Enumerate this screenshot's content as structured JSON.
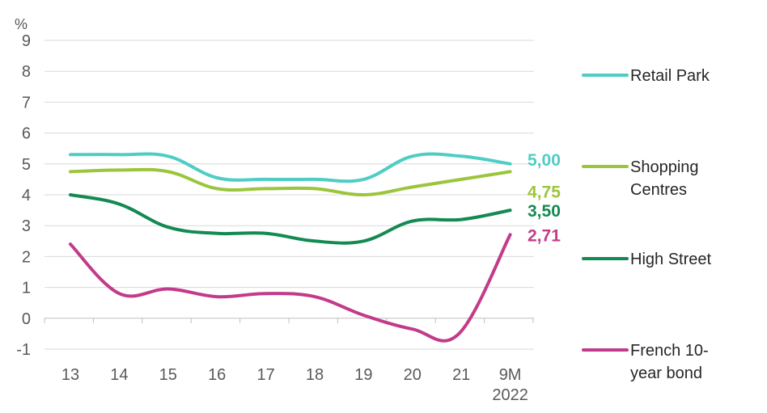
{
  "chart_data": {
    "type": "line",
    "title": "",
    "xlabel": "",
    "ylabel": "%",
    "ylim": [
      -1,
      9
    ],
    "yticks": [
      "-1",
      "0",
      "1",
      "2",
      "3",
      "4",
      "5",
      "6",
      "7",
      "8",
      "9"
    ],
    "categories": [
      "13",
      "14",
      "15",
      "16",
      "17",
      "18",
      "19",
      "20",
      "21",
      "9M\n2022"
    ],
    "grid": true,
    "legend_position": "right",
    "series": [
      {
        "name": "Retail Park",
        "color": "#4ecdc4",
        "end_label": "5,00",
        "points": [
          [
            0,
            5.3
          ],
          [
            1,
            5.3
          ],
          [
            2,
            5.25
          ],
          [
            3,
            4.55
          ],
          [
            4,
            4.5
          ],
          [
            5,
            4.5
          ],
          [
            6,
            4.5
          ],
          [
            7,
            5.25
          ],
          [
            8,
            5.25
          ],
          [
            9,
            5.0
          ]
        ]
      },
      {
        "name": "Shopping\nCentres",
        "color": "#9bc53d",
        "end_label": "4,75",
        "points": [
          [
            0,
            4.75
          ],
          [
            1,
            4.8
          ],
          [
            2,
            4.75
          ],
          [
            3,
            4.2
          ],
          [
            4,
            4.2
          ],
          [
            5,
            4.2
          ],
          [
            6,
            4.0
          ],
          [
            7,
            4.25
          ],
          [
            8,
            4.5
          ],
          [
            9,
            4.75
          ]
        ]
      },
      {
        "name": "High Street",
        "color": "#138a52",
        "end_label": "3,50",
        "points": [
          [
            0,
            4.0
          ],
          [
            1,
            3.7
          ],
          [
            2,
            2.95
          ],
          [
            3,
            2.75
          ],
          [
            4,
            2.75
          ],
          [
            5,
            2.5
          ],
          [
            6,
            2.5
          ],
          [
            7,
            3.15
          ],
          [
            8,
            3.2
          ],
          [
            9,
            3.5
          ]
        ]
      },
      {
        "name": "French 10-\nyear bond",
        "color": "#c23b8a",
        "end_label": "2,71",
        "points": [
          [
            0,
            2.4
          ],
          [
            1,
            0.8
          ],
          [
            2,
            0.95
          ],
          [
            3,
            0.7
          ],
          [
            4,
            0.8
          ],
          [
            5,
            0.7
          ],
          [
            6,
            0.1
          ],
          [
            7,
            -0.35
          ],
          [
            7.95,
            -0.5
          ],
          [
            9,
            2.71
          ]
        ]
      }
    ]
  }
}
